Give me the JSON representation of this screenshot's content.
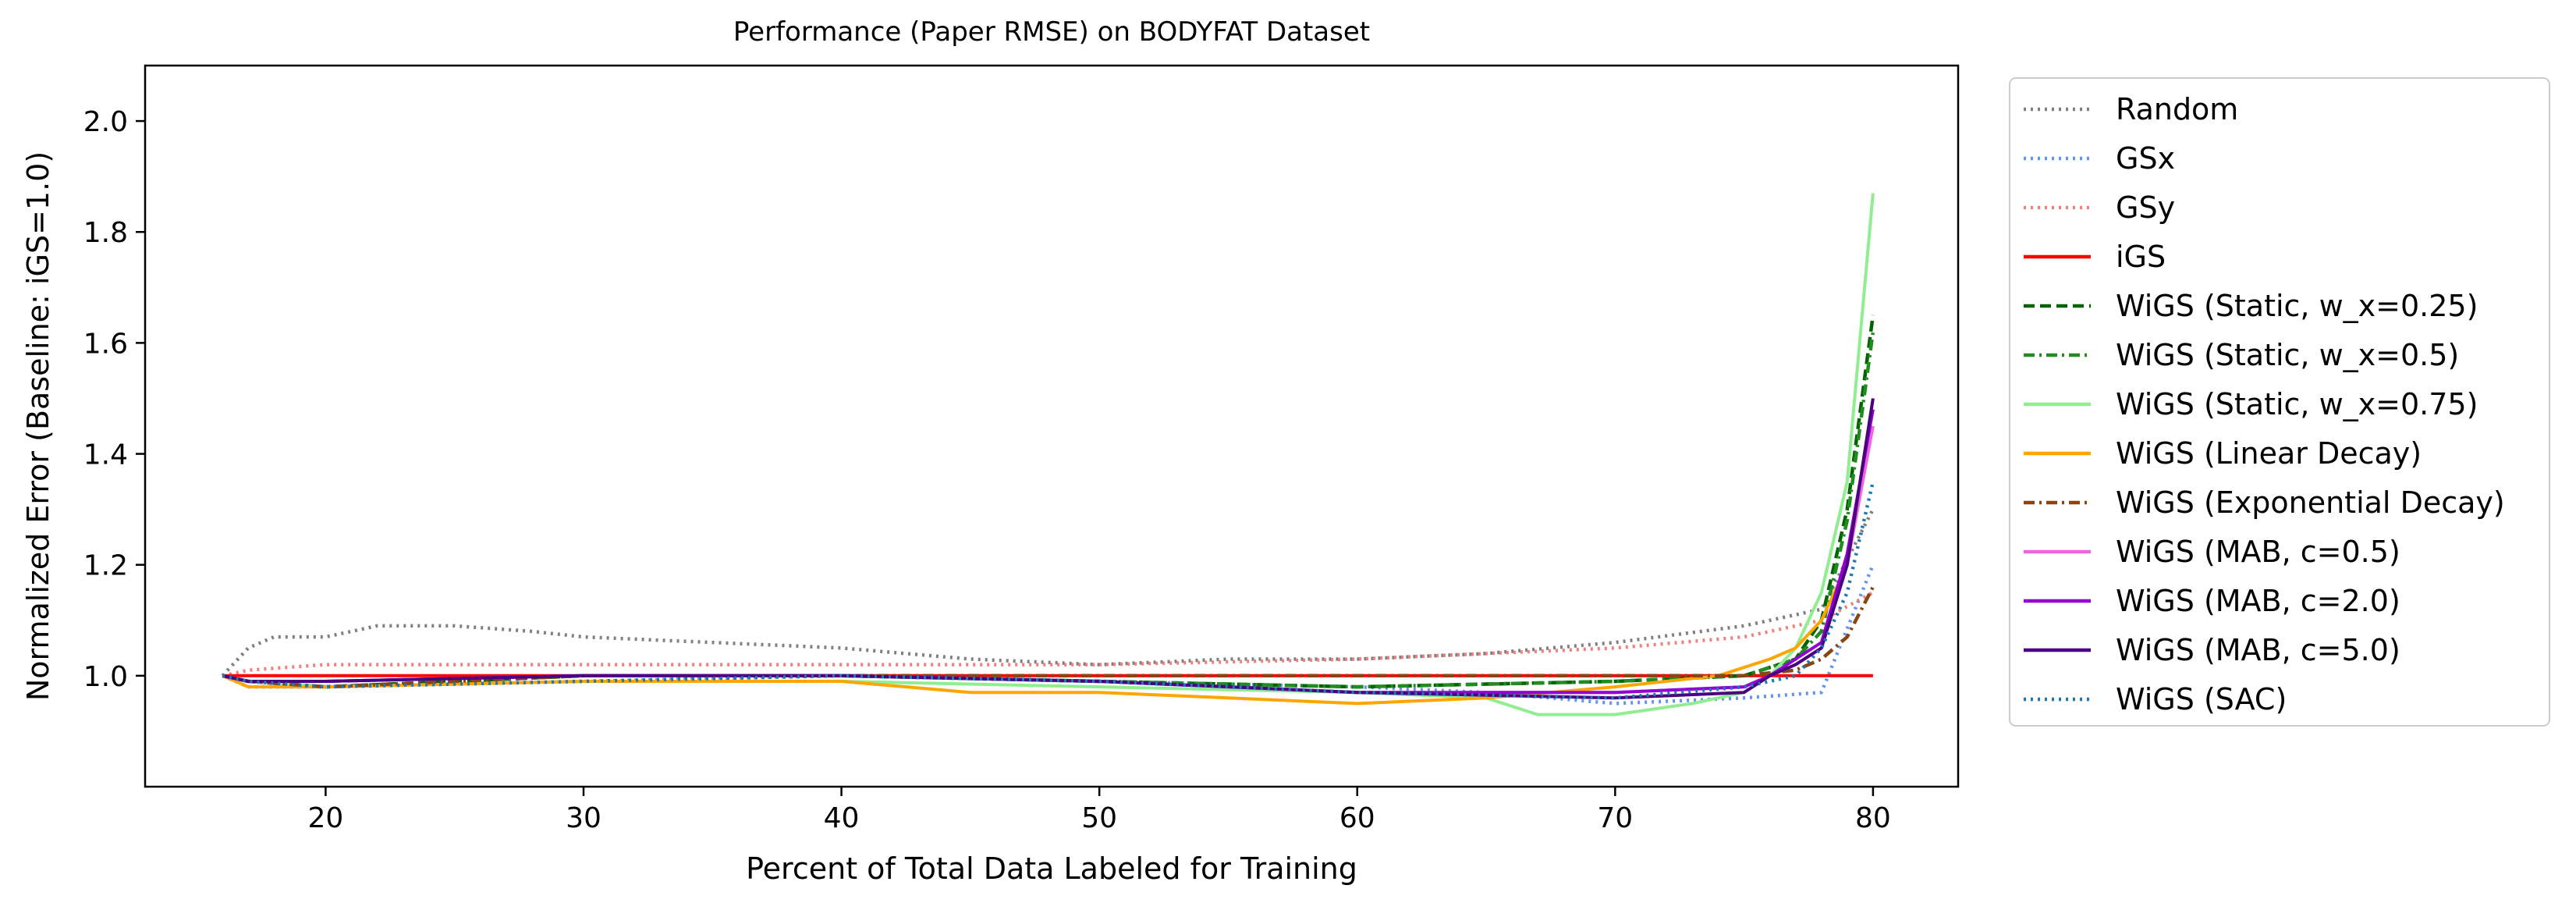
{
  "chart_data": {
    "type": "line",
    "title": "Performance (Paper RMSE) on BODYFAT Dataset",
    "xlabel": "Percent of Total Data Labeled for Training",
    "ylabel": "Normalized Error (Baseline: iGS=1.0)",
    "xlim": [
      13,
      83.3
    ],
    "ylim": [
      0.8,
      2.1
    ],
    "xticks": [
      20,
      30,
      40,
      50,
      60,
      70,
      80
    ],
    "yticks": [
      1.0,
      1.2,
      1.4,
      1.6,
      1.8,
      2.0
    ],
    "xtick_labels": [
      "20",
      "30",
      "40",
      "50",
      "60",
      "70",
      "80"
    ],
    "ytick_labels": [
      "1.0",
      "1.2",
      "1.4",
      "1.6",
      "1.8",
      "2.0"
    ],
    "grid": false,
    "legend_position": "outside-right",
    "series": [
      {
        "name": "Random",
        "color": "#808080",
        "style": "dotted",
        "x": [
          16,
          17,
          18,
          20,
          22,
          25,
          28,
          30,
          35,
          40,
          45,
          50,
          55,
          60,
          65,
          70,
          75,
          78,
          80
        ],
        "y": [
          1.0,
          1.05,
          1.07,
          1.07,
          1.09,
          1.09,
          1.08,
          1.07,
          1.06,
          1.05,
          1.03,
          1.02,
          1.03,
          1.03,
          1.04,
          1.06,
          1.09,
          1.12,
          1.3
        ]
      },
      {
        "name": "GSx",
        "color": "#6495ED",
        "style": "dotted",
        "x": [
          16,
          17,
          20,
          30,
          40,
          50,
          60,
          65,
          70,
          75,
          78,
          80
        ],
        "y": [
          1.0,
          0.98,
          0.98,
          0.99,
          1.0,
          0.99,
          0.98,
          0.97,
          0.95,
          0.96,
          0.97,
          1.2
        ]
      },
      {
        "name": "GSy",
        "color": "#F08080",
        "style": "dotted",
        "x": [
          16,
          17,
          20,
          30,
          40,
          50,
          60,
          70,
          75,
          78,
          80
        ],
        "y": [
          1.0,
          1.01,
          1.02,
          1.02,
          1.02,
          1.02,
          1.03,
          1.05,
          1.07,
          1.1,
          1.15
        ]
      },
      {
        "name": "iGS",
        "color": "#FF0000",
        "style": "solid",
        "x": [
          16,
          80
        ],
        "y": [
          1.0,
          1.0
        ]
      },
      {
        "name": "WiGS (Static, w_x=0.25)",
        "color": "#006400",
        "style": "dashed",
        "x": [
          16,
          17,
          20,
          30,
          40,
          50,
          60,
          70,
          75,
          77,
          78,
          79,
          80
        ],
        "y": [
          1.0,
          0.99,
          0.98,
          1.0,
          1.0,
          0.99,
          0.98,
          0.99,
          1.0,
          1.03,
          1.1,
          1.3,
          1.65
        ]
      },
      {
        "name": "WiGS (Static, w_x=0.5)",
        "color": "#228B22",
        "style": "dashdot",
        "x": [
          16,
          17,
          20,
          30,
          40,
          50,
          60,
          70,
          75,
          77,
          78,
          79,
          80
        ],
        "y": [
          1.0,
          0.99,
          0.98,
          1.0,
          1.0,
          0.99,
          0.98,
          0.99,
          1.0,
          1.03,
          1.08,
          1.28,
          1.62
        ]
      },
      {
        "name": "WiGS (Static, w_x=0.75)",
        "color": "#90EE90",
        "style": "solid",
        "x": [
          16,
          17,
          20,
          30,
          40,
          50,
          60,
          65,
          67,
          70,
          73,
          75,
          76,
          77,
          78,
          79,
          80
        ],
        "y": [
          1.0,
          0.99,
          0.98,
          0.99,
          0.99,
          0.98,
          0.97,
          0.96,
          0.93,
          0.93,
          0.95,
          0.97,
          1.0,
          1.05,
          1.15,
          1.35,
          1.87
        ]
      },
      {
        "name": "WiGS (Linear Decay)",
        "color": "#FFA500",
        "style": "solid",
        "x": [
          16,
          17,
          20,
          30,
          40,
          45,
          50,
          55,
          60,
          65,
          70,
          74,
          76,
          77,
          78,
          79,
          80
        ],
        "y": [
          1.0,
          0.98,
          0.98,
          0.99,
          0.99,
          0.97,
          0.97,
          0.96,
          0.95,
          0.96,
          0.98,
          1.0,
          1.03,
          1.05,
          1.1,
          1.2,
          1.5
        ]
      },
      {
        "name": "WiGS (Exponential Decay)",
        "color": "#8B4513",
        "style": "dashdot",
        "x": [
          16,
          17,
          20,
          30,
          40,
          50,
          60,
          70,
          75,
          77,
          78,
          79,
          80
        ],
        "y": [
          1.0,
          0.99,
          0.98,
          1.0,
          1.0,
          1.0,
          1.0,
          1.0,
          1.0,
          1.01,
          1.03,
          1.07,
          1.16
        ]
      },
      {
        "name": "WiGS (MAB, c=0.5)",
        "color": "#EE66DD",
        "style": "solid",
        "x": [
          16,
          17,
          20,
          30,
          40,
          50,
          60,
          70,
          75,
          76,
          77,
          78,
          79,
          80
        ],
        "y": [
          1.0,
          0.99,
          0.99,
          1.0,
          1.0,
          0.99,
          0.97,
          0.97,
          0.98,
          1.0,
          1.02,
          1.05,
          1.2,
          1.45
        ]
      },
      {
        "name": "WiGS (MAB, c=2.0)",
        "color": "#9400D3",
        "style": "solid",
        "x": [
          16,
          17,
          20,
          30,
          40,
          50,
          60,
          70,
          75,
          76,
          77,
          78,
          79,
          80
        ],
        "y": [
          1.0,
          0.99,
          0.99,
          1.0,
          1.0,
          0.99,
          0.97,
          0.97,
          0.98,
          1.0,
          1.03,
          1.06,
          1.22,
          1.48
        ]
      },
      {
        "name": "WiGS (MAB, c=5.0)",
        "color": "#4B0082",
        "style": "solid",
        "x": [
          16,
          17,
          20,
          30,
          40,
          50,
          60,
          70,
          75,
          76,
          77,
          78,
          79,
          80
        ],
        "y": [
          1.0,
          0.99,
          0.99,
          1.0,
          1.0,
          0.99,
          0.97,
          0.96,
          0.97,
          1.0,
          1.02,
          1.05,
          1.2,
          1.5
        ]
      },
      {
        "name": "WiGS (SAC)",
        "color": "#1F77B4",
        "style": "dotted",
        "x": [
          16,
          17,
          20,
          30,
          40,
          50,
          60,
          70,
          75,
          77,
          78,
          79,
          80
        ],
        "y": [
          1.0,
          0.99,
          0.98,
          0.99,
          1.0,
          0.99,
          0.97,
          0.96,
          0.98,
          1.0,
          1.05,
          1.15,
          1.35
        ]
      }
    ]
  }
}
